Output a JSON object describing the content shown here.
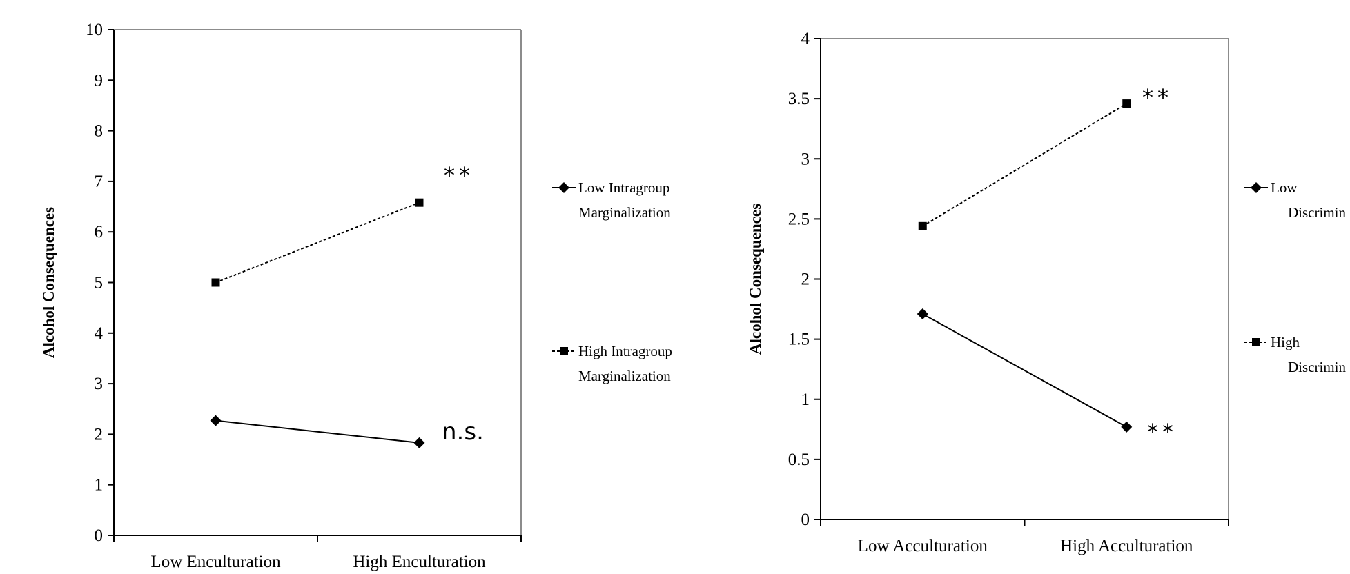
{
  "chart_data": [
    {
      "type": "line",
      "title": "",
      "xlabel": "",
      "ylabel": "Alcohol Consequences",
      "categories": [
        "Low Enculturation",
        "High Enculturation"
      ],
      "ylim": [
        0,
        10
      ],
      "yticks": [
        "0",
        "1",
        "2",
        "3",
        "4",
        "5",
        "6",
        "7",
        "8",
        "9",
        "10"
      ],
      "grid": false,
      "legend_position": "right",
      "series": [
        {
          "name": "Low Intragroup Marginalization",
          "legend_lines": [
            "Low Intragroup",
            "Marginalization"
          ],
          "values": [
            2.27,
            1.83
          ],
          "style": "solid",
          "marker": "diamond",
          "annotation": "n.s."
        },
        {
          "name": "High Intragroup Marginalization",
          "legend_lines": [
            "High Intragroup",
            "Marginalization"
          ],
          "values": [
            5.0,
            6.58
          ],
          "style": "dashed",
          "marker": "square",
          "annotation": "**"
        }
      ]
    },
    {
      "type": "line",
      "title": "",
      "xlabel": "",
      "ylabel": "Alcohol Consequences",
      "categories": [
        "Low Acculturation",
        "High Acculturation"
      ],
      "ylim": [
        0,
        4
      ],
      "yticks": [
        "0",
        "0.5",
        "1",
        "1.5",
        "2",
        "2.5",
        "3",
        "3.5",
        "4"
      ],
      "grid": false,
      "legend_position": "right",
      "series": [
        {
          "name": "Low Discrimin",
          "legend_lines": [
            "Low",
            "Discrimin"
          ],
          "values": [
            1.71,
            0.77
          ],
          "style": "solid",
          "marker": "diamond",
          "annotation": "**"
        },
        {
          "name": "High Discrimin",
          "legend_lines": [
            "High",
            "Discrimin"
          ],
          "values": [
            2.44,
            3.46
          ],
          "style": "dashed",
          "marker": "square",
          "annotation": "**"
        }
      ]
    }
  ]
}
